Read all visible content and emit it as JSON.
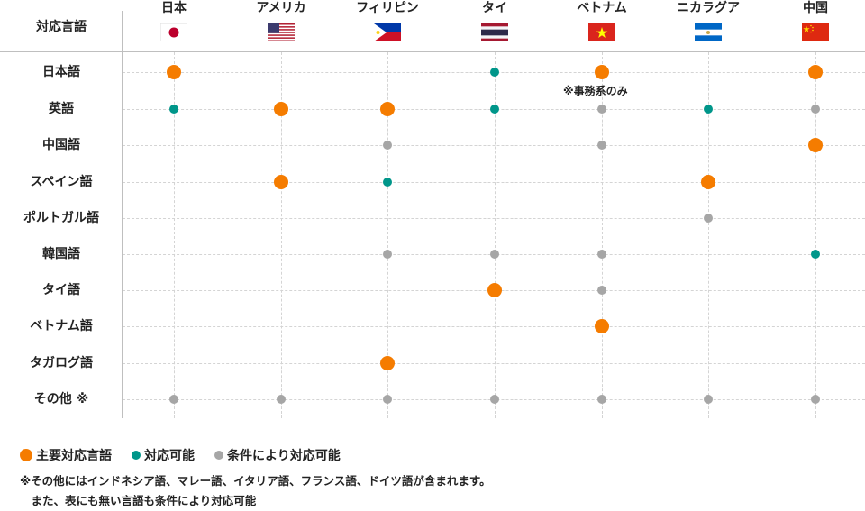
{
  "header": {
    "corner_label": "対応言語"
  },
  "countries": [
    {
      "name": "日本",
      "flag": "jp-flag-icon"
    },
    {
      "name": "アメリカ",
      "flag": "us-flag-icon"
    },
    {
      "name": "フィリピン",
      "flag": "ph-flag-icon"
    },
    {
      "name": "タイ",
      "flag": "th-flag-icon"
    },
    {
      "name": "ベトナム",
      "flag": "vn-flag-icon"
    },
    {
      "name": "ニカラグア",
      "flag": "ni-flag-icon"
    },
    {
      "name": "中国",
      "flag": "cn-flag-icon"
    }
  ],
  "rows": [
    {
      "label": "日本語",
      "cells": [
        "main",
        "",
        "",
        "sub",
        "main",
        "",
        "main"
      ]
    },
    {
      "label": "英語",
      "cells": [
        "sub",
        "main",
        "main",
        "sub",
        "cond",
        "sub",
        "cond"
      ]
    },
    {
      "label": "中国語",
      "cells": [
        "",
        "",
        "cond",
        "",
        "cond",
        "",
        "main"
      ]
    },
    {
      "label": "スペイン語",
      "cells": [
        "",
        "main",
        "sub",
        "",
        "",
        "main",
        ""
      ]
    },
    {
      "label": "ポルトガル語",
      "cells": [
        "",
        "",
        "",
        "",
        "",
        "cond",
        ""
      ]
    },
    {
      "label": "韓国語",
      "cells": [
        "",
        "",
        "cond",
        "cond",
        "cond",
        "",
        "sub"
      ]
    },
    {
      "label": "タイ語",
      "cells": [
        "",
        "",
        "",
        "main",
        "cond",
        "",
        ""
      ]
    },
    {
      "label": "ベトナム語",
      "cells": [
        "",
        "",
        "",
        "",
        "main",
        "",
        ""
      ]
    },
    {
      "label": "タガログ語",
      "cells": [
        "",
        "",
        "main",
        "",
        "",
        "",
        ""
      ]
    },
    {
      "label": "その他 ※",
      "cells": [
        "cond",
        "cond",
        "cond",
        "cond",
        "cond",
        "cond",
        "cond"
      ]
    }
  ],
  "annotation": "※事務系のみ",
  "legend": [
    {
      "label": "主要対応言語",
      "color": "#f57c00",
      "kind": "main"
    },
    {
      "label": "対応可能",
      "color": "#00968a",
      "kind": "sub"
    },
    {
      "label": "条件により対応可能",
      "color": "#a6a6a6",
      "kind": "cond"
    }
  ],
  "notes": [
    "※その他にはインドネシア語、マレー語、イタリア語、フランス語、ドイツ語が含まれます。",
    "　また、表にも無い言語も条件により対応可能"
  ],
  "colors": {
    "main": "#f57c00",
    "sub": "#00968a",
    "cond": "#a6a6a6"
  }
}
